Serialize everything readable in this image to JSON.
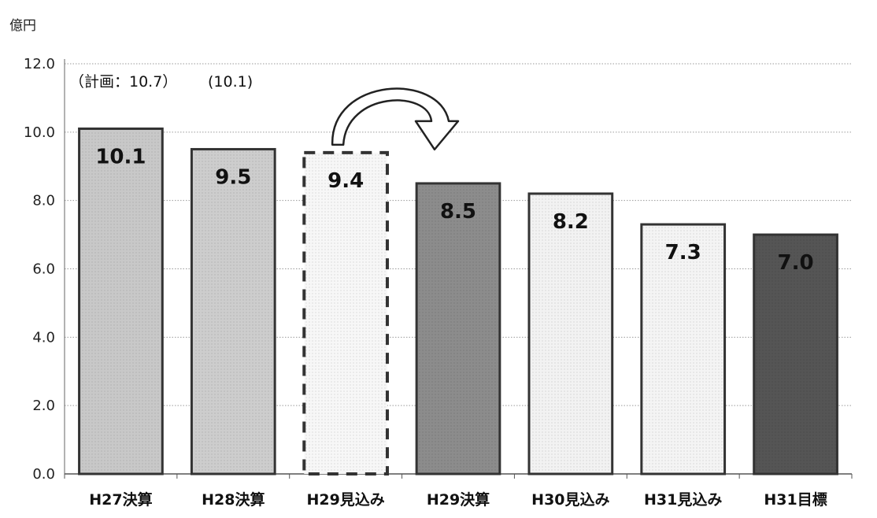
{
  "chart_data": {
    "type": "bar",
    "unit_label": "億円",
    "categories": [
      "H27決算",
      "H28決算",
      "H29見込み",
      "H29決算",
      "H30見込み",
      "H31見込み",
      "H31目標"
    ],
    "values": [
      10.1,
      9.5,
      9.4,
      8.5,
      8.2,
      7.3,
      7.0
    ],
    "value_labels": [
      "10.1",
      "9.5",
      "9.4",
      "8.5",
      "8.2",
      "7.3",
      "7.0"
    ],
    "ylim": [
      0,
      12
    ],
    "yticks": [
      "0.0",
      "2.0",
      "4.0",
      "6.0",
      "8.0",
      "10.0",
      "12.0"
    ],
    "grid": true,
    "annotations": {
      "plan_note": "（計画：10.7）",
      "paren_note": "(10.1)"
    },
    "bar_styles": [
      {
        "fill": "#c8c8c8",
        "dashed": false
      },
      {
        "fill": "#cdcdcd",
        "dashed": false
      },
      {
        "fill": "#f7f7f7",
        "dashed": true
      },
      {
        "fill": "#8c8c8c",
        "dashed": false
      },
      {
        "fill": "#f2f2f2",
        "dashed": false
      },
      {
        "fill": "#f4f4f4",
        "dashed": false
      },
      {
        "fill": "#555555",
        "dashed": false
      }
    ],
    "arrow": {
      "from_category": "H29見込み",
      "to_category": "H29決算"
    }
  }
}
